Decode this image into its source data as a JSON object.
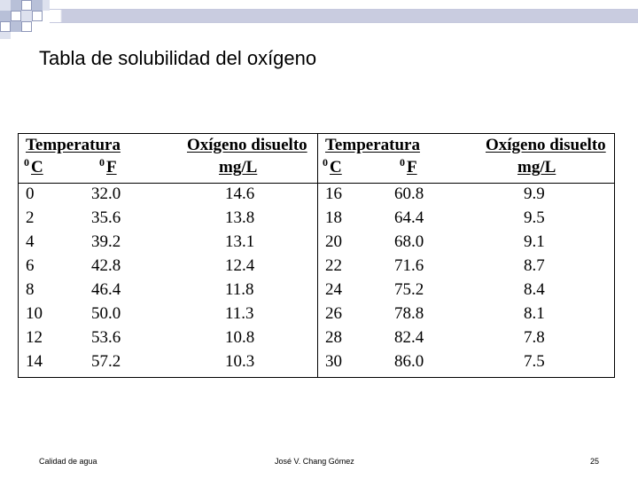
{
  "slide": {
    "title": "Tabla de solubilidad del oxígeno"
  },
  "table": {
    "header": {
      "temp_label": "Temperatura",
      "oxygen_label": "Oxígeno disuelto",
      "celsius_sup": "0",
      "celsius_unit": "C",
      "fahrenheit_sup": "0",
      "fahrenheit_unit": "F",
      "oxygen_unit": "mg/L"
    },
    "left_rows": [
      {
        "c": "0",
        "f": "32.0",
        "o2": "14.6"
      },
      {
        "c": "2",
        "f": "35.6",
        "o2": "13.8"
      },
      {
        "c": "4",
        "f": "39.2",
        "o2": "13.1"
      },
      {
        "c": "6",
        "f": "42.8",
        "o2": "12.4"
      },
      {
        "c": "8",
        "f": "46.4",
        "o2": "11.8"
      },
      {
        "c": "10",
        "f": "50.0",
        "o2": "11.3"
      },
      {
        "c": "12",
        "f": "53.6",
        "o2": "10.8"
      },
      {
        "c": "14",
        "f": "57.2",
        "o2": "10.3"
      }
    ],
    "right_rows": [
      {
        "c": "16",
        "f": "60.8",
        "o2": "9.9"
      },
      {
        "c": "18",
        "f": "64.4",
        "o2": "9.5"
      },
      {
        "c": "20",
        "f": "68.0",
        "o2": "9.1"
      },
      {
        "c": "22",
        "f": "71.6",
        "o2": "8.7"
      },
      {
        "c": "24",
        "f": "75.2",
        "o2": "8.4"
      },
      {
        "c": "26",
        "f": "78.8",
        "o2": "8.1"
      },
      {
        "c": "28",
        "f": "82.4",
        "o2": "7.8"
      },
      {
        "c": "30",
        "f": "86.0",
        "o2": "7.5"
      }
    ]
  },
  "footer": {
    "left": "Calidad de agua",
    "center": "José V. Chang Gómez",
    "page_number": "25"
  },
  "colors": {
    "decor_fill": "#b8c0d8",
    "decor_line": "#8e97b9"
  }
}
